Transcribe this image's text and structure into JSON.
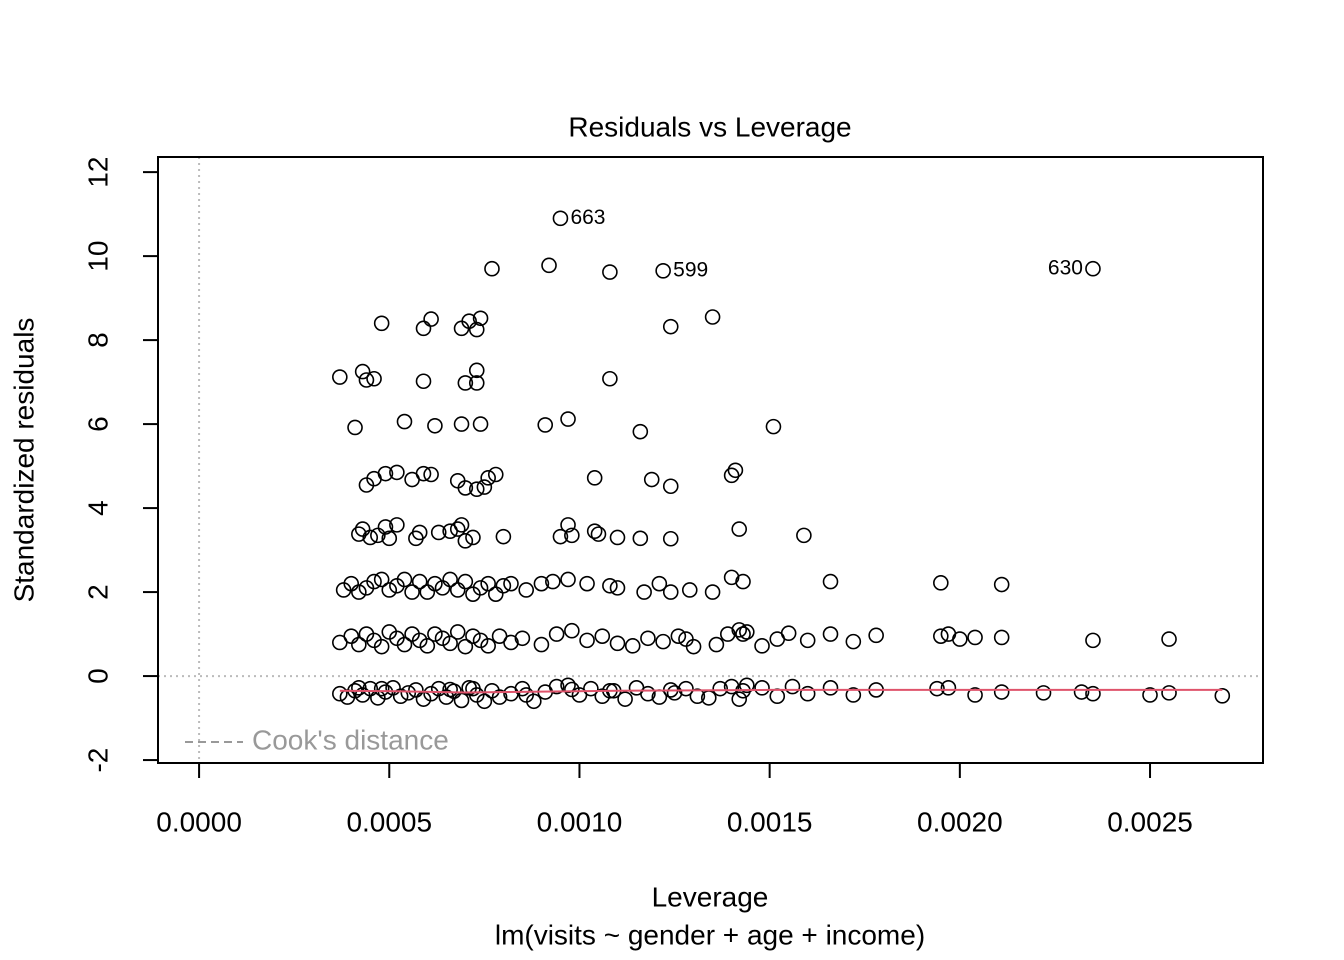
{
  "chart_data": {
    "type": "scatter",
    "title": "Residuals vs Leverage",
    "xlabel": "Leverage",
    "subtitle": "lm(visits ~ gender + age + income)",
    "ylabel": "Standardized residuals",
    "xlim": [
      -0.000108,
      0.002797
    ],
    "ylim": [
      -2.07,
      12.36
    ],
    "xticks": [
      {
        "value": 0,
        "label": "0.0000"
      },
      {
        "value": 0.0005,
        "label": "0.0005"
      },
      {
        "value": 0.001,
        "label": "0.0010"
      },
      {
        "value": 0.0015,
        "label": "0.0015"
      },
      {
        "value": 0.002,
        "label": "0.0020"
      },
      {
        "value": 0.0025,
        "label": "0.0025"
      }
    ],
    "yticks": [
      -2,
      0,
      2,
      4,
      6,
      8,
      10,
      12
    ],
    "reference_lines": {
      "x": 0,
      "y": 0,
      "color": "#bbbbbb"
    },
    "color": "#000000",
    "x": [
      0.00037,
      0.00039,
      0.00041,
      0.00043,
      0.00045,
      0.00047,
      0.00049,
      0.00051,
      0.00053,
      0.00055,
      0.00057,
      0.00059,
      0.00061,
      0.00063,
      0.00065,
      0.00067,
      0.00069,
      0.00071,
      0.00073,
      0.00075,
      0.00077,
      0.00079,
      0.00082,
      0.00085,
      0.00088,
      0.00091,
      0.00094,
      0.00097,
      0.001,
      0.00103,
      0.00106,
      0.00109,
      0.00112,
      0.00115,
      0.00118,
      0.00121,
      0.00124,
      0.00128,
      0.00131,
      0.00134,
      0.00137,
      0.0014,
      0.00142,
      0.00144,
      0.00148,
      0.00152,
      0.00156,
      0.0016,
      0.00166,
      0.00172,
      0.00178,
      0.00194,
      0.00197,
      0.00204,
      0.00211,
      0.00222,
      0.00232,
      0.00235,
      0.0025,
      0.00255,
      0.00269,
      0.00042,
      0.00048,
      0.00066,
      0.00072,
      0.00086,
      0.00098,
      0.00108,
      0.00125,
      0.00143,
      0.00037,
      0.0004,
      0.00042,
      0.00044,
      0.00046,
      0.00048,
      0.0005,
      0.00052,
      0.00054,
      0.00056,
      0.00058,
      0.0006,
      0.00062,
      0.00064,
      0.00066,
      0.00068,
      0.0007,
      0.00072,
      0.00074,
      0.00076,
      0.00079,
      0.00082,
      0.00085,
      0.0009,
      0.00094,
      0.00098,
      0.00102,
      0.00106,
      0.0011,
      0.00114,
      0.00118,
      0.00122,
      0.00126,
      0.0013,
      0.00136,
      0.00139,
      0.00142,
      0.00144,
      0.00148,
      0.00155,
      0.0016,
      0.00166,
      0.00172,
      0.00178,
      0.00195,
      0.00197,
      0.002,
      0.00204,
      0.00211,
      0.00235,
      0.00255,
      0.00128,
      0.00143,
      0.00152,
      0.00038,
      0.0004,
      0.00042,
      0.00044,
      0.00046,
      0.00048,
      0.0005,
      0.00052,
      0.00054,
      0.00056,
      0.00058,
      0.0006,
      0.00062,
      0.00064,
      0.00066,
      0.00068,
      0.0007,
      0.00072,
      0.00074,
      0.00076,
      0.00078,
      0.0008,
      0.00082,
      0.00086,
      0.0009,
      0.00097,
      0.00102,
      0.00108,
      0.0011,
      0.00117,
      0.00121,
      0.00124,
      0.00129,
      0.00135,
      0.0014,
      0.00143,
      0.00166,
      0.00195,
      0.00211,
      0.00093,
      0.00042,
      0.00043,
      0.00045,
      0.00047,
      0.00049,
      0.0005,
      0.00052,
      0.00057,
      0.00058,
      0.00063,
      0.00066,
      0.00068,
      0.00069,
      0.0007,
      0.00072,
      0.0008,
      0.00095,
      0.00097,
      0.00098,
      0.00104,
      0.00105,
      0.0011,
      0.00116,
      0.00124,
      0.00142,
      0.00159,
      0.00044,
      0.00046,
      0.00049,
      0.00052,
      0.00056,
      0.00059,
      0.00061,
      0.00068,
      0.0007,
      0.00073,
      0.00075,
      0.00076,
      0.00078,
      0.00104,
      0.00119,
      0.00124,
      0.0014,
      0.00141,
      0.00041,
      0.00054,
      0.00062,
      0.00069,
      0.00074,
      0.00091,
      0.00097,
      0.00116,
      0.00151,
      0.00037,
      0.00043,
      0.00044,
      0.00046,
      0.00059,
      0.0007,
      0.00073,
      0.00073,
      0.00108,
      0.00048,
      0.00061,
      0.00059,
      0.00069,
      0.00071,
      0.00073,
      0.00074,
      0.00124,
      0.00135,
      0.00077,
      0.00092,
      0.00108,
      0.00122,
      0.00235,
      0.00095
    ],
    "values": [
      -0.42,
      -0.5,
      -0.35,
      -0.45,
      -0.3,
      -0.52,
      -0.38,
      -0.28,
      -0.48,
      -0.4,
      -0.33,
      -0.55,
      -0.42,
      -0.3,
      -0.5,
      -0.36,
      -0.58,
      -0.28,
      -0.45,
      -0.6,
      -0.35,
      -0.5,
      -0.42,
      -0.3,
      -0.6,
      -0.38,
      -0.25,
      -0.22,
      -0.45,
      -0.3,
      -0.48,
      -0.35,
      -0.55,
      -0.28,
      -0.42,
      -0.5,
      -0.33,
      -0.3,
      -0.48,
      -0.52,
      -0.3,
      -0.25,
      -0.55,
      -0.22,
      -0.28,
      -0.48,
      -0.25,
      -0.42,
      -0.28,
      -0.45,
      -0.33,
      -0.3,
      -0.28,
      -0.45,
      -0.38,
      -0.4,
      -0.38,
      -0.42,
      -0.45,
      -0.4,
      -0.47,
      -0.28,
      -0.3,
      -0.32,
      -0.3,
      -0.45,
      -0.32,
      -0.35,
      -0.4,
      -0.35,
      0.8,
      0.95,
      0.75,
      1.0,
      0.85,
      0.7,
      1.05,
      0.9,
      0.75,
      1.0,
      0.85,
      0.72,
      1.0,
      0.9,
      0.78,
      1.05,
      0.7,
      0.95,
      0.85,
      0.72,
      0.95,
      0.8,
      0.9,
      0.75,
      1.0,
      1.08,
      0.85,
      0.95,
      0.78,
      0.72,
      0.9,
      0.82,
      0.95,
      0.7,
      0.75,
      1.0,
      1.1,
      1.05,
      0.72,
      1.02,
      0.85,
      1.0,
      0.82,
      0.97,
      0.95,
      1.0,
      0.88,
      0.92,
      0.92,
      0.85,
      0.88,
      0.88,
      1.0,
      0.88,
      2.05,
      2.2,
      2.0,
      2.1,
      2.25,
      2.3,
      2.05,
      2.15,
      2.3,
      2.0,
      2.25,
      2.0,
      2.2,
      2.1,
      2.3,
      2.05,
      2.25,
      1.95,
      2.1,
      2.2,
      1.95,
      2.15,
      2.2,
      2.05,
      2.2,
      2.3,
      2.2,
      2.15,
      2.1,
      2.0,
      2.2,
      2.0,
      2.05,
      2.0,
      2.35,
      2.25,
      2.25,
      2.22,
      2.18,
      2.25,
      3.38,
      3.5,
      3.3,
      3.35,
      3.55,
      3.28,
      3.6,
      3.28,
      3.42,
      3.42,
      3.45,
      3.5,
      3.6,
      3.22,
      3.3,
      3.32,
      3.32,
      3.6,
      3.35,
      3.45,
      3.38,
      3.3,
      3.28,
      3.27,
      3.5,
      3.35,
      4.55,
      4.7,
      4.82,
      4.85,
      4.68,
      4.82,
      4.8,
      4.65,
      4.48,
      4.45,
      4.5,
      4.72,
      4.8,
      4.72,
      4.68,
      4.52,
      4.78,
      4.9,
      5.92,
      6.06,
      5.96,
      6.0,
      6.0,
      5.98,
      6.12,
      5.82,
      5.94,
      7.12,
      7.25,
      7.05,
      7.08,
      7.02,
      6.98,
      6.98,
      7.28,
      7.08,
      8.4,
      8.5,
      8.28,
      8.28,
      8.45,
      8.25,
      8.52,
      8.32,
      8.55,
      9.7,
      9.78,
      9.62,
      9.65,
      9.7,
      10.9
    ],
    "smooth": {
      "color": "#DF536B",
      "x": [
        0.00037,
        0.0005,
        0.0007,
        0.0009,
        0.0011,
        0.0013,
        0.0015,
        0.0018,
        0.0021,
        0.0024,
        0.00269
      ],
      "values": [
        -0.35,
        -0.36,
        -0.39,
        -0.37,
        -0.35,
        -0.34,
        -0.33,
        -0.33,
        -0.33,
        -0.33,
        -0.33
      ]
    },
    "annotations": [
      {
        "text": "663",
        "x": 0.00095,
        "y": 10.9,
        "side": "right"
      },
      {
        "text": "599",
        "x": 0.00122,
        "y": 9.65,
        "side": "right"
      },
      {
        "text": "630",
        "x": 0.00235,
        "y": 9.7,
        "side": "left"
      }
    ],
    "legend": {
      "label": "Cook's distance",
      "position": "bottomleft",
      "color": "#999999"
    }
  }
}
